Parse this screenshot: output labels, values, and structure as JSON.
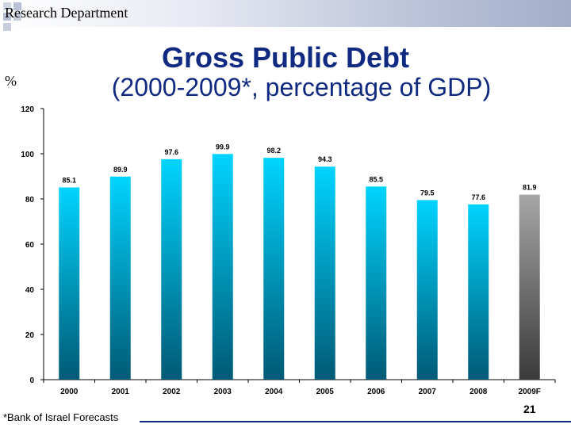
{
  "header": {
    "department": "Research Department"
  },
  "title": "Gross Public Debt",
  "subtitle": "(2000-2009*, percentage of GDP)",
  "unit_label": "%",
  "footnote": "*Bank of Israel Forecasts",
  "page_number": "21",
  "colors": {
    "title": "#102a82",
    "bar_top": "#00d4ff",
    "bar_bottom": "#005a75",
    "forecast_bar_top": "#a6a6a6",
    "forecast_bar_bottom": "#3a3a3a",
    "accent_line": "#102a82"
  },
  "chart_data": {
    "type": "bar",
    "categories": [
      "2000",
      "2001",
      "2002",
      "2003",
      "2004",
      "2005",
      "2006",
      "2007",
      "2008",
      "2009F"
    ],
    "values": [
      85.1,
      89.9,
      97.6,
      99.9,
      98.2,
      94.3,
      85.5,
      79.5,
      77.6,
      81.9
    ],
    "data_labels": [
      "85.1",
      "89.9",
      "97.6",
      "99.9",
      "98.2",
      "94.3",
      "85.5",
      "79.5",
      "77.6",
      "81.9"
    ],
    "forecast_index": 9,
    "ylim": [
      0,
      120
    ],
    "yticks": [
      0,
      20,
      40,
      60,
      80,
      100,
      120
    ],
    "ytick_labels": [
      "0",
      "20",
      "40",
      "60",
      "80",
      "100",
      "120"
    ],
    "grid": false,
    "legend": "none",
    "xlabel": "",
    "ylabel": "%"
  }
}
